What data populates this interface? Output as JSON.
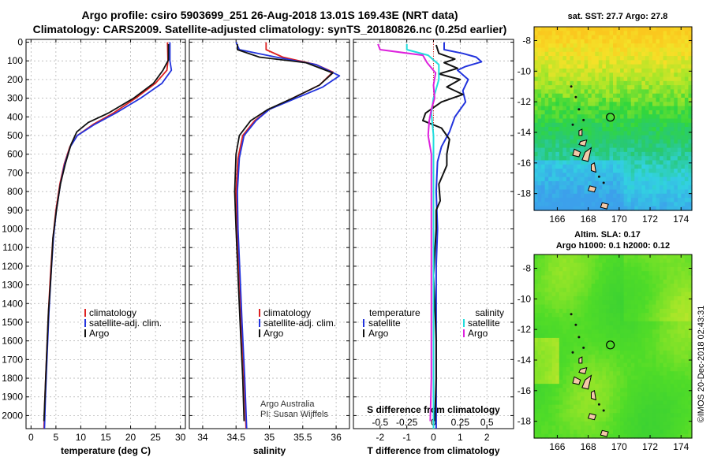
{
  "header": {
    "line1": "Argo profile: csiro 5903699_251 26-Aug-2018 13.01S 169.43E (NRT data)",
    "line2": "Climatology: CARS2009. Satellite-adjusted climatology: synTS_20180826.nc (0.25d earlier)"
  },
  "depth_ticks": [
    0,
    100,
    200,
    300,
    400,
    500,
    600,
    700,
    800,
    900,
    1000,
    1100,
    1200,
    1300,
    1400,
    1500,
    1600,
    1700,
    1800,
    1900,
    2000
  ],
  "colors": {
    "climatology": "#dd2222",
    "satellite": "#2233dd",
    "argo": "#111111",
    "sat_salinity": "#22dddd",
    "argo_salinity": "#dd22dd"
  },
  "chart_data": [
    {
      "type": "line",
      "name": "temperature",
      "xlabel": "temperature (deg C)",
      "xlim": [
        -1,
        31
      ],
      "ylim": [
        2070,
        -15
      ],
      "xticks": [
        0,
        5,
        10,
        15,
        20,
        25,
        30
      ],
      "legend": [
        "climatology",
        "satellite-adj. clim.",
        "Argo"
      ],
      "series": [
        {
          "name": "climatology",
          "color": "#dd2222",
          "points": [
            [
              27.4,
              0
            ],
            [
              27.5,
              100
            ],
            [
              27.3,
              150
            ],
            [
              25,
              220
            ],
            [
              21,
              300
            ],
            [
              16.5,
              380
            ],
            [
              12.5,
              440
            ],
            [
              9.3,
              500
            ],
            [
              7.8,
              560
            ],
            [
              6.7,
              650
            ],
            [
              5.8,
              760
            ],
            [
              5,
              900
            ],
            [
              4.4,
              1050
            ],
            [
              3.9,
              1250
            ],
            [
              3.5,
              1450
            ],
            [
              3.1,
              1700
            ],
            [
              2.8,
              1900
            ],
            [
              2.6,
              2070
            ]
          ]
        },
        {
          "name": "satellite-adj. clim.",
          "color": "#2233dd",
          "points": [
            [
              27.9,
              0
            ],
            [
              27.9,
              100
            ],
            [
              28.2,
              150
            ],
            [
              26.3,
              220
            ],
            [
              22,
              300
            ],
            [
              17,
              380
            ],
            [
              12.8,
              440
            ],
            [
              9.3,
              500
            ],
            [
              7.9,
              560
            ],
            [
              6.8,
              650
            ],
            [
              5.9,
              760
            ],
            [
              5.1,
              900
            ],
            [
              4.5,
              1050
            ],
            [
              4,
              1250
            ],
            [
              3.6,
              1450
            ],
            [
              3.2,
              1700
            ],
            [
              2.9,
              1900
            ],
            [
              2.7,
              2070
            ]
          ]
        },
        {
          "name": "Argo",
          "color": "#111111",
          "points": [
            [
              27.6,
              10
            ],
            [
              27.6,
              95
            ],
            [
              26.5,
              150
            ],
            [
              24.6,
              220
            ],
            [
              20.6,
              300
            ],
            [
              15.5,
              380
            ],
            [
              11.5,
              430
            ],
            [
              9.2,
              480
            ],
            [
              8,
              550
            ],
            [
              6.9,
              650
            ],
            [
              5.9,
              760
            ],
            [
              5.1,
              900
            ],
            [
              4.4,
              1050
            ],
            [
              4,
              1250
            ],
            [
              3.5,
              1450
            ],
            [
              3.1,
              1700
            ],
            [
              2.8,
              1900
            ],
            [
              2.6,
              2030
            ]
          ]
        }
      ]
    },
    {
      "type": "line",
      "name": "salinity",
      "xlabel": "salinity",
      "xlim": [
        33.8,
        36.2
      ],
      "ylim": [
        2070,
        -15
      ],
      "xticks": [
        34,
        34.5,
        35,
        35.5,
        36
      ],
      "legend": [
        "climatology",
        "satellite-adj. clim.",
        "Argo"
      ],
      "annotation": [
        "Argo Australia",
        "PI: Susan Wijffels"
      ],
      "series": [
        {
          "name": "climatology",
          "color": "#dd2222",
          "points": [
            [
              34.95,
              0
            ],
            [
              34.95,
              40
            ],
            [
              35.2,
              80
            ],
            [
              35.7,
              120
            ],
            [
              35.95,
              160
            ],
            [
              35.75,
              230
            ],
            [
              35.35,
              300
            ],
            [
              35,
              360
            ],
            [
              34.78,
              420
            ],
            [
              34.6,
              500
            ],
            [
              34.53,
              620
            ],
            [
              34.5,
              800
            ],
            [
              34.52,
              1000
            ],
            [
              34.55,
              1250
            ],
            [
              34.58,
              1500
            ],
            [
              34.62,
              1800
            ],
            [
              34.65,
              2070
            ]
          ]
        },
        {
          "name": "satellite-adj. clim.",
          "color": "#2233dd",
          "points": [
            [
              34.5,
              0
            ],
            [
              34.55,
              40
            ],
            [
              35.1,
              80
            ],
            [
              35.7,
              120
            ],
            [
              36.05,
              180
            ],
            [
              35.8,
              240
            ],
            [
              35.4,
              300
            ],
            [
              35,
              360
            ],
            [
              34.8,
              420
            ],
            [
              34.62,
              500
            ],
            [
              34.55,
              620
            ],
            [
              34.52,
              800
            ],
            [
              34.53,
              1000
            ],
            [
              34.56,
              1250
            ],
            [
              34.59,
              1500
            ],
            [
              34.63,
              1800
            ],
            [
              34.66,
              2070
            ]
          ]
        },
        {
          "name": "Argo",
          "color": "#111111",
          "points": [
            [
              34.52,
              10
            ],
            [
              34.52,
              40
            ],
            [
              34.85,
              80
            ],
            [
              35.55,
              110
            ],
            [
              35.95,
              165
            ],
            [
              35.75,
              230
            ],
            [
              35.35,
              300
            ],
            [
              34.98,
              360
            ],
            [
              34.72,
              420
            ],
            [
              34.55,
              500
            ],
            [
              34.5,
              600
            ],
            [
              34.48,
              800
            ],
            [
              34.5,
              1000
            ],
            [
              34.53,
              1250
            ],
            [
              34.56,
              1500
            ],
            [
              34.6,
              1800
            ],
            [
              34.62,
              2030
            ]
          ]
        }
      ]
    },
    {
      "type": "line",
      "name": "difference",
      "xlabel": "T difference from climatology",
      "xlabel2": "S difference from climatology",
      "xlim": [
        -3,
        3
      ],
      "ylim": [
        2070,
        -15
      ],
      "xticks": [
        -2,
        -1,
        0,
        1,
        2
      ],
      "xtick_labels": [
        "-2",
        "-1",
        "0",
        "1",
        "2"
      ],
      "xticks2": [
        -0.5,
        -0.25,
        0,
        0.25,
        0.5
      ],
      "xtick2_labels": [
        "-0.5",
        "-0.25",
        "0",
        "0.25",
        "0.5"
      ],
      "legend_left_title": "temperature",
      "legend_right_title": "salinity",
      "legend_left": [
        "satellite",
        "Argo"
      ],
      "legend_right": [
        "satellite",
        "Argo"
      ],
      "series": [
        {
          "name": "satellite (temperature)",
          "color": "#2233dd",
          "xscale": "t",
          "points": [
            [
              0.4,
              0
            ],
            [
              0.4,
              40
            ],
            [
              1.1,
              60
            ],
            [
              1.6,
              80
            ],
            [
              1.8,
              105
            ],
            [
              1.2,
              130
            ],
            [
              0.9,
              150
            ],
            [
              1.3,
              200
            ],
            [
              1.1,
              260
            ],
            [
              1.2,
              320
            ],
            [
              0.8,
              400
            ],
            [
              0.6,
              480
            ],
            [
              0.3,
              560
            ],
            [
              0.15,
              640
            ],
            [
              0.1,
              800
            ],
            [
              0.15,
              1000
            ],
            [
              0.1,
              1200
            ],
            [
              0.1,
              1500
            ],
            [
              0.1,
              1800
            ],
            [
              0.1,
              2070
            ]
          ]
        },
        {
          "name": "Argo (temperature)",
          "color": "#111111",
          "xscale": "t",
          "points": [
            [
              0.1,
              15
            ],
            [
              0.2,
              60
            ],
            [
              0.8,
              90
            ],
            [
              0.4,
              110
            ],
            [
              0.9,
              140
            ],
            [
              0.2,
              170
            ],
            [
              1,
              200
            ],
            [
              0.5,
              240
            ],
            [
              1.1,
              280
            ],
            [
              0.3,
              320
            ],
            [
              -0.3,
              380
            ],
            [
              -0.4,
              420
            ],
            [
              0.3,
              460
            ],
            [
              0.6,
              520
            ],
            [
              0.5,
              600
            ],
            [
              0.5,
              660
            ],
            [
              0.2,
              760
            ],
            [
              0.25,
              850
            ],
            [
              0.1,
              900
            ],
            [
              0.1,
              1000
            ],
            [
              0,
              1250
            ],
            [
              0.05,
              1400
            ],
            [
              0.1,
              1600
            ],
            [
              0.1,
              1800
            ],
            [
              0.05,
              2030
            ]
          ]
        },
        {
          "name": "satellite (salinity)",
          "color": "#22dddd",
          "xscale": "s",
          "points": [
            [
              -0.25,
              10
            ],
            [
              -0.25,
              40
            ],
            [
              -0.05,
              70
            ],
            [
              0.05,
              120
            ],
            [
              0.05,
              200
            ],
            [
              0,
              300
            ],
            [
              -0.02,
              380
            ],
            [
              0,
              500
            ],
            [
              0,
              600
            ],
            [
              0,
              800
            ],
            [
              0,
              1000
            ],
            [
              0,
              1200
            ],
            [
              0,
              1500
            ],
            [
              0,
              1800
            ],
            [
              0,
              2070
            ]
          ]
        },
        {
          "name": "Argo (salinity)",
          "color": "#dd22dd",
          "xscale": "s",
          "points": [
            [
              -0.52,
              10
            ],
            [
              -0.5,
              40
            ],
            [
              -0.1,
              70
            ],
            [
              -0.06,
              110
            ],
            [
              0.02,
              165
            ],
            [
              0,
              230
            ],
            [
              0.01,
              300
            ],
            [
              -0.02,
              360
            ],
            [
              -0.04,
              420
            ],
            [
              -0.05,
              500
            ],
            [
              -0.02,
              600
            ],
            [
              -0.02,
              800
            ],
            [
              -0.02,
              1000
            ],
            [
              -0.02,
              1250
            ],
            [
              -0.02,
              1500
            ],
            [
              -0.02,
              1800
            ],
            [
              -0.03,
              2030
            ]
          ]
        }
      ]
    },
    {
      "type": "heatmap",
      "name": "sst-map",
      "title": "sat. SST: 27.7 Argo: 27.8",
      "xticks": [
        166,
        168,
        170,
        172,
        174
      ],
      "yticks": [
        -8,
        -10,
        -12,
        -14,
        -16,
        -18
      ],
      "xlim": [
        164.5,
        174.7
      ],
      "ylim": [
        -19.1,
        -7.1
      ],
      "profile_location": [
        169.43,
        -13.01
      ]
    },
    {
      "type": "heatmap",
      "name": "sla-map",
      "title": "Altim. SLA: 0.17",
      "subtitle": "Argo h1000: 0.1 h2000: 0.12",
      "xticks": [
        166,
        168,
        170,
        172,
        174
      ],
      "yticks": [
        -8,
        -10,
        -12,
        -14,
        -16,
        -18
      ],
      "xlim": [
        164.5,
        174.7
      ],
      "ylim": [
        -19.1,
        -7.1
      ],
      "profile_location": [
        169.43,
        -13.01
      ]
    }
  ],
  "watermark": "©IMOS 20-Dec-2018 02:43:31"
}
